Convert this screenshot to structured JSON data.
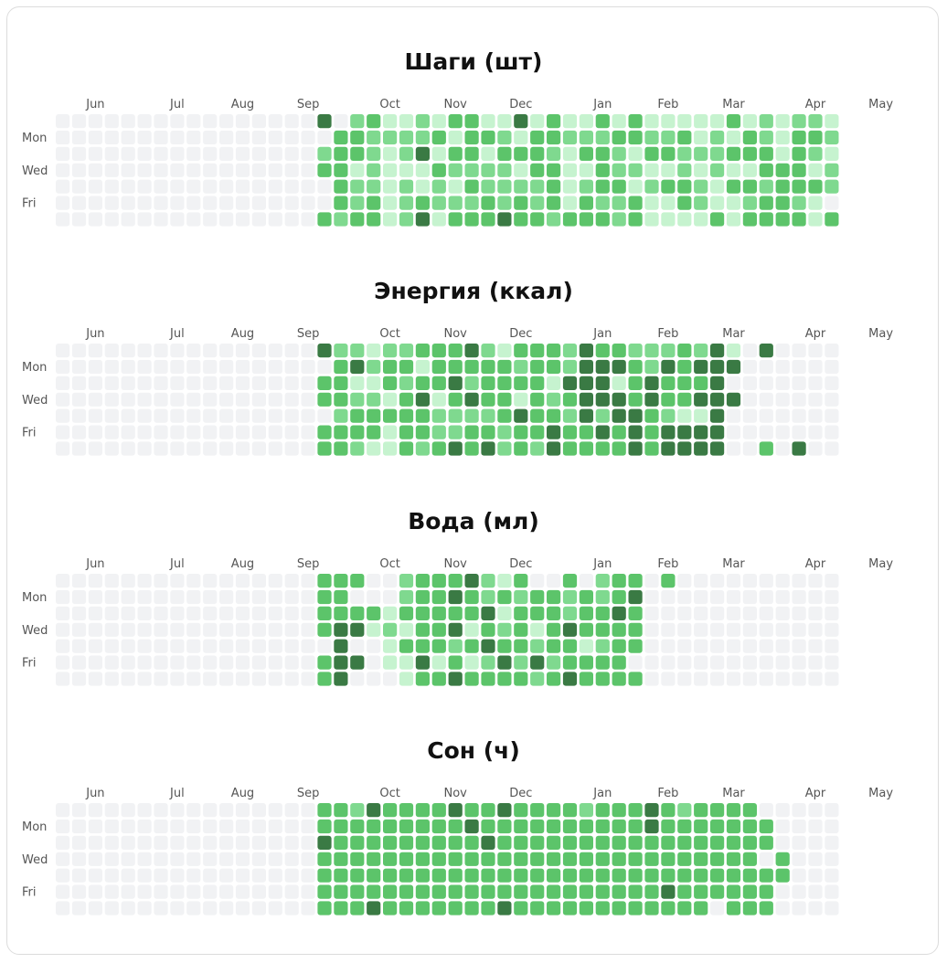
{
  "colors": {
    "empty": "#f1f2f4",
    "level1": "#c6f3cf",
    "level2": "#7fd98f",
    "level3": "#5cc46a",
    "level4": "#3a7a44"
  },
  "legend_levels": "0 = no data, 1–4 = increasing intensity",
  "chart_data": [
    {
      "type": "heatmap",
      "title": "Шаги (шт)",
      "month_labels": [
        {
          "week": 2,
          "label": "Jun"
        },
        {
          "week": 7,
          "label": "Jul"
        },
        {
          "week": 11,
          "label": "Aug"
        },
        {
          "week": 15,
          "label": "Sep"
        },
        {
          "week": 20,
          "label": "Oct"
        },
        {
          "week": 24,
          "label": "Nov"
        },
        {
          "week": 28,
          "label": "Dec"
        },
        {
          "week": 33,
          "label": "Jan"
        },
        {
          "week": 37,
          "label": "Feb"
        },
        {
          "week": 41,
          "label": "Mar"
        },
        {
          "week": 46,
          "label": "Apr"
        },
        {
          "week": 50,
          "label": "May"
        }
      ],
      "day_labels": [
        {
          "row": 1,
          "label": "Mon"
        },
        {
          "row": 3,
          "label": "Wed"
        },
        {
          "row": 5,
          "label": "Fri"
        }
      ],
      "rows": [
        "000000000000000040231121331141311313111113121221",
        "000000000000000003322223133213322233223121321332",
        "000000000000000023321241331333213321332223331321",
        "000000000000000033121113222213311322112121133312",
        "000000000000000003221212132222312331233213323332",
        "000000000000000003231232223232313223113211233210",
        "000000000000000032331241333433233323111131333313"
      ]
    },
    {
      "type": "heatmap",
      "title": "Энергия (ккал)",
      "month_labels": [
        {
          "week": 2,
          "label": "Jun"
        },
        {
          "week": 7,
          "label": "Jul"
        },
        {
          "week": 11,
          "label": "Aug"
        },
        {
          "week": 15,
          "label": "Sep"
        },
        {
          "week": 20,
          "label": "Oct"
        },
        {
          "week": 24,
          "label": "Nov"
        },
        {
          "week": 28,
          "label": "Dec"
        },
        {
          "week": 33,
          "label": "Jan"
        },
        {
          "week": 37,
          "label": "Feb"
        },
        {
          "week": 41,
          "label": "Mar"
        },
        {
          "week": 46,
          "label": "Apr"
        },
        {
          "week": 50,
          "label": "May"
        }
      ],
      "day_labels": [
        {
          "row": 1,
          "label": "Mon"
        },
        {
          "row": 3,
          "label": "Wed"
        },
        {
          "row": 5,
          "label": "Fri"
        }
      ],
      "rows": [
        "000000000000000042212233342133324332223241040000",
        "000000000000000003423313333323324443243444000000",
        "000000000000000033113233423333144413433340000000",
        "000000000000000033221341343313234443433444000000",
        "000000000000000002333332222343324244321140000000",
        "000000000000000033331332233233433434344440000000",
        "000000000000000033211323434232433334344440030400"
      ]
    },
    {
      "type": "heatmap",
      "title": "Вода (мл)",
      "month_labels": [
        {
          "week": 2,
          "label": "Jun"
        },
        {
          "week": 7,
          "label": "Jul"
        },
        {
          "week": 11,
          "label": "Aug"
        },
        {
          "week": 15,
          "label": "Sep"
        },
        {
          "week": 20,
          "label": "Oct"
        },
        {
          "week": 24,
          "label": "Nov"
        },
        {
          "week": 28,
          "label": "Dec"
        },
        {
          "week": 33,
          "label": "Jan"
        },
        {
          "week": 37,
          "label": "Feb"
        },
        {
          "week": 41,
          "label": "Mar"
        },
        {
          "week": 46,
          "label": "Apr"
        },
        {
          "week": 50,
          "label": "May"
        }
      ],
      "day_labels": [
        {
          "row": 1,
          "label": "Mon"
        },
        {
          "row": 3,
          "label": "Wed"
        },
        {
          "row": 5,
          "label": "Fri"
        }
      ],
      "rows": [
        "000000000000000033300233342130030233030000000000",
        "000000000000000033000233432323323234000000000000",
        "000000000000000033331333334133323343000000000000",
        "000000000000000034412133413231343333000000000000",
        "000000000000000004001333234332331233000000000000",
        "000000000000000034401141312424233330000000000000",
        "000000000000000034000133433332343333000000000000"
      ]
    },
    {
      "type": "heatmap",
      "title": "Сон (ч)",
      "month_labels": [
        {
          "week": 2,
          "label": "Jun"
        },
        {
          "week": 7,
          "label": "Jul"
        },
        {
          "week": 11,
          "label": "Aug"
        },
        {
          "week": 15,
          "label": "Sep"
        },
        {
          "week": 20,
          "label": "Oct"
        },
        {
          "week": 24,
          "label": "Nov"
        },
        {
          "week": 28,
          "label": "Dec"
        },
        {
          "week": 33,
          "label": "Jan"
        },
        {
          "week": 37,
          "label": "Feb"
        },
        {
          "week": 41,
          "label": "Mar"
        },
        {
          "week": 46,
          "label": "Apr"
        },
        {
          "week": 50,
          "label": "May"
        }
      ],
      "day_labels": [
        {
          "row": 1,
          "label": "Mon"
        },
        {
          "row": 3,
          "label": "Wed"
        },
        {
          "row": 5,
          "label": "Fri"
        }
      ],
      "rows": [
        "000000000000000033243333433433332333432333300000",
        "000000000000000033333333343333333333433333330000",
        "000000000000000043333333334333333333333333330000",
        "000000000000000033333333333333333333333333303000",
        "000000000000000033333333333333333333333333333000",
        "000000000000000033333333333333333333343333330000",
        "000000000000000033343333333433333333333303330000"
      ]
    }
  ]
}
